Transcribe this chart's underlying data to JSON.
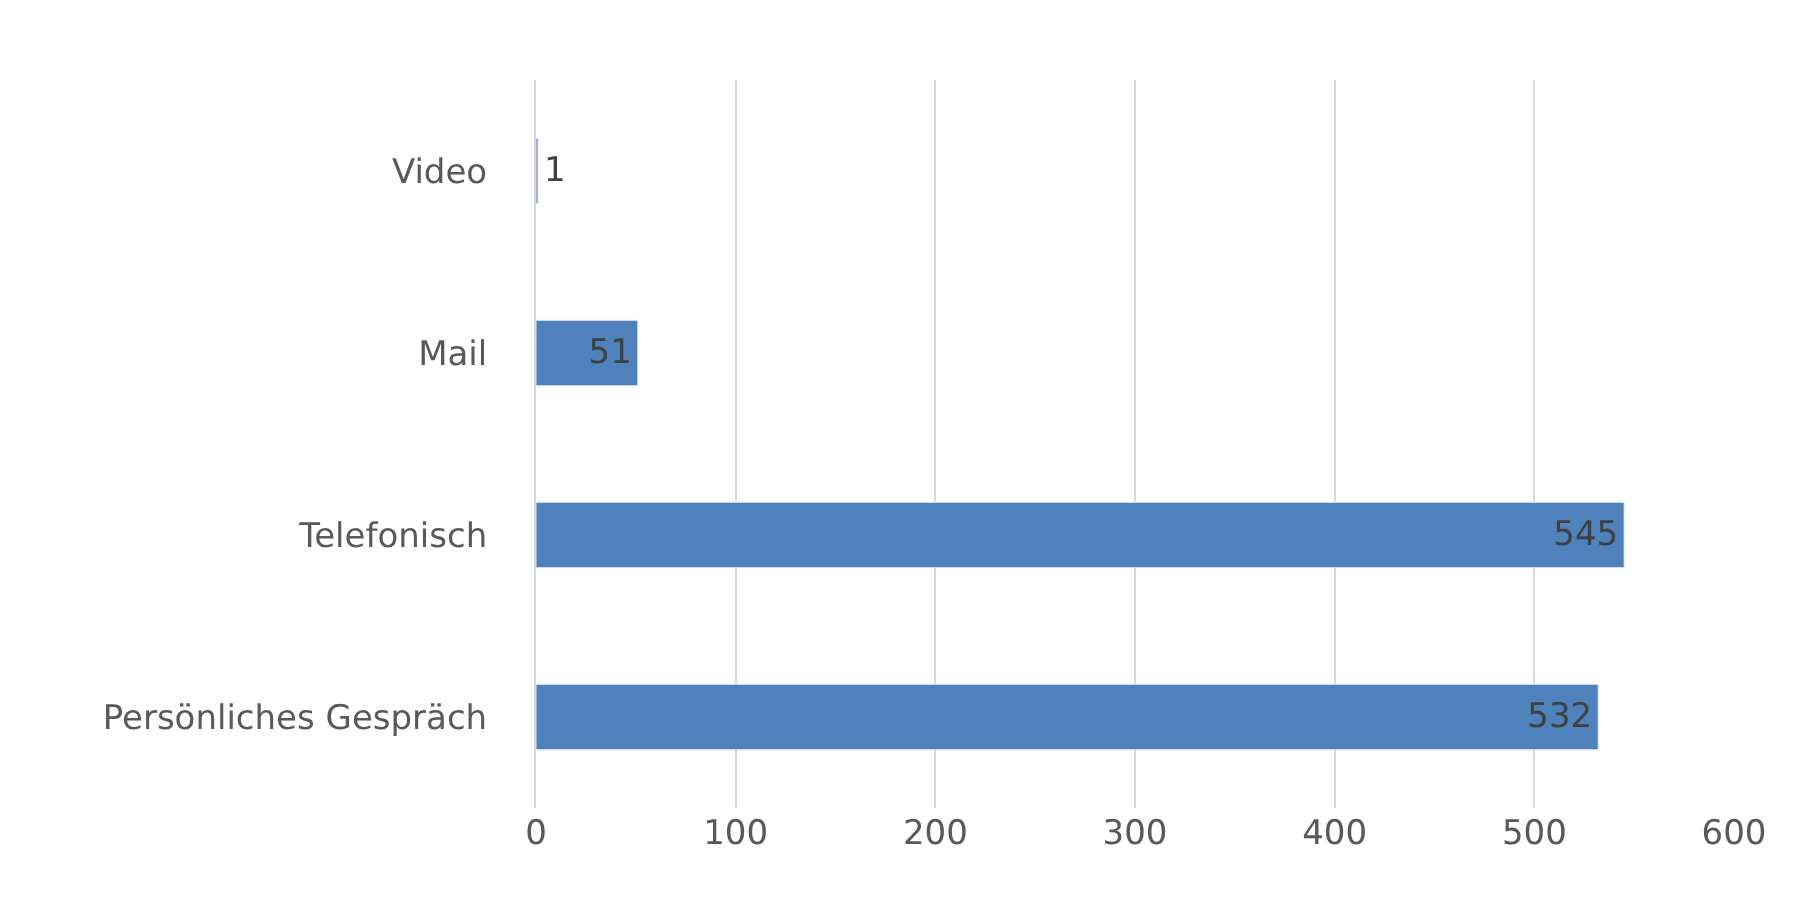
{
  "chart_data": {
    "type": "bar",
    "orientation": "horizontal",
    "categories": [
      "Video",
      "Mail",
      "Telefonisch",
      "Persönliches Gespräch"
    ],
    "values": [
      1,
      51,
      545,
      532
    ],
    "color": "#4f81bd",
    "xlim": [
      0,
      600
    ],
    "xticks": [
      0,
      100,
      200,
      300,
      400,
      500,
      600
    ],
    "grid": "x",
    "data_labels": true,
    "legend": false
  }
}
